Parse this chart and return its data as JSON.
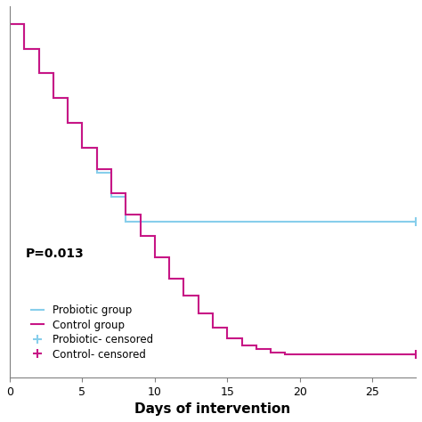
{
  "probiotic_steps": [
    [
      0,
      1.0
    ],
    [
      1,
      1.0
    ],
    [
      1,
      0.93
    ],
    [
      2,
      0.93
    ],
    [
      2,
      0.86
    ],
    [
      3,
      0.86
    ],
    [
      3,
      0.79
    ],
    [
      4,
      0.79
    ],
    [
      4,
      0.72
    ],
    [
      5,
      0.72
    ],
    [
      5,
      0.65
    ],
    [
      6,
      0.65
    ],
    [
      6,
      0.58
    ],
    [
      7,
      0.58
    ],
    [
      7,
      0.51
    ],
    [
      8,
      0.51
    ],
    [
      8,
      0.44
    ],
    [
      28,
      0.44
    ]
  ],
  "control_steps": [
    [
      0,
      1.0
    ],
    [
      1,
      1.0
    ],
    [
      1,
      0.93
    ],
    [
      2,
      0.93
    ],
    [
      2,
      0.86
    ],
    [
      3,
      0.86
    ],
    [
      3,
      0.79
    ],
    [
      4,
      0.79
    ],
    [
      4,
      0.72
    ],
    [
      5,
      0.72
    ],
    [
      5,
      0.65
    ],
    [
      6,
      0.65
    ],
    [
      6,
      0.59
    ],
    [
      7,
      0.59
    ],
    [
      7,
      0.52
    ],
    [
      8,
      0.52
    ],
    [
      8,
      0.46
    ],
    [
      9,
      0.46
    ],
    [
      9,
      0.4
    ],
    [
      10,
      0.4
    ],
    [
      10,
      0.34
    ],
    [
      11,
      0.34
    ],
    [
      11,
      0.28
    ],
    [
      12,
      0.28
    ],
    [
      12,
      0.23
    ],
    [
      13,
      0.23
    ],
    [
      13,
      0.18
    ],
    [
      14,
      0.18
    ],
    [
      14,
      0.14
    ],
    [
      15,
      0.14
    ],
    [
      15,
      0.11
    ],
    [
      16,
      0.11
    ],
    [
      16,
      0.09
    ],
    [
      17,
      0.09
    ],
    [
      17,
      0.08
    ],
    [
      18,
      0.08
    ],
    [
      18,
      0.07
    ],
    [
      19,
      0.07
    ],
    [
      19,
      0.065
    ],
    [
      28,
      0.065
    ]
  ],
  "probiotic_color": "#87CEEB",
  "control_color": "#C71585",
  "probiotic_censored_x": [
    28
  ],
  "probiotic_censored_y": [
    0.44
  ],
  "control_censored_x": [
    28
  ],
  "control_censored_y": [
    0.065
  ],
  "xlabel": "Days of intervention",
  "xlim": [
    0,
    28
  ],
  "ylim": [
    0.0,
    1.05
  ],
  "xticks": [
    0,
    5,
    10,
    15,
    20,
    25
  ],
  "yticks": [],
  "pvalue_text": "P=0.013",
  "legend_labels": [
    "Probiotic group",
    "Control group",
    "Probiotic- censored",
    "Control- censored"
  ],
  "figsize": [
    4.74,
    4.74
  ],
  "dpi": 100
}
